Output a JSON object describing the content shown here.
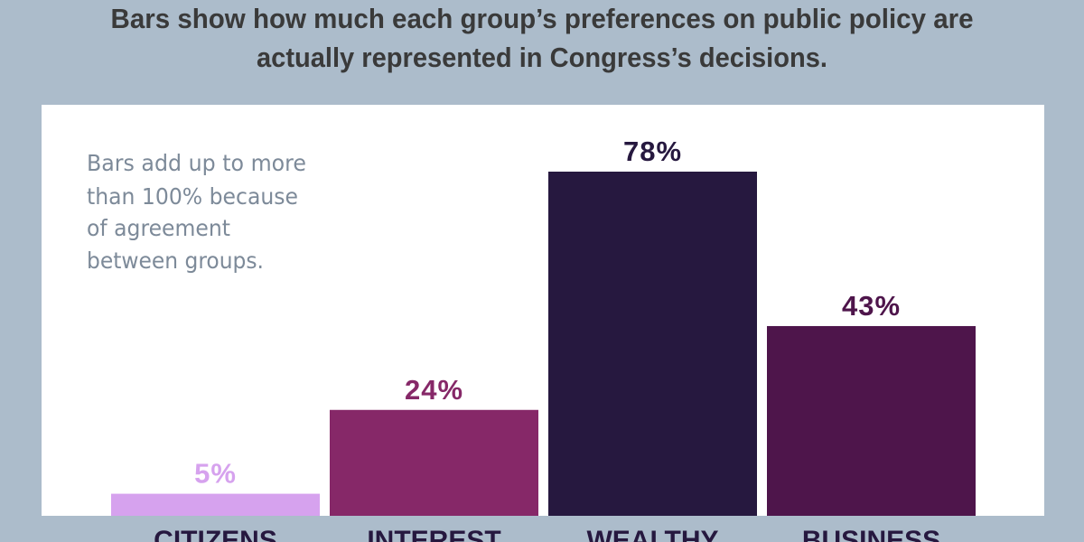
{
  "chart_data": {
    "type": "bar",
    "title_lines": [
      "Bars show how much each group’s preferences on public policy are",
      "actually represented in Congress’s decisions."
    ],
    "note_lines": [
      "Bars add up to more",
      "than 100% because",
      "of agreement",
      "between groups."
    ],
    "categories": [
      "CITIZENS",
      "INTEREST",
      "WEALTHY",
      "BUSINESS"
    ],
    "values": [
      5,
      24,
      78,
      43
    ],
    "value_labels": [
      "5%",
      "24%",
      "78%",
      "43%"
    ],
    "colors": [
      "#d6a2ee",
      "#862868",
      "#26183f",
      "#4e154b"
    ],
    "ylim": [
      0,
      93
    ],
    "grid": false,
    "legend": "none",
    "background": "#acbccb",
    "panel": "#ffffff"
  }
}
